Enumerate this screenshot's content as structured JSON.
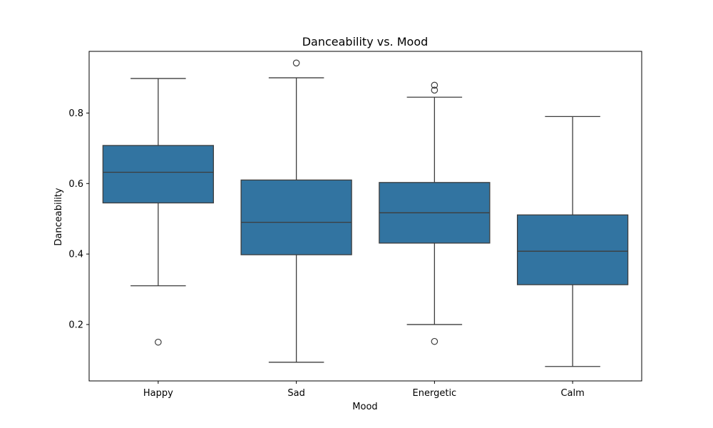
{
  "chart_data": {
    "type": "box",
    "title": "Danceability vs. Mood",
    "xlabel": "Mood",
    "ylabel": "Danceability",
    "ylim": [
      0.04,
      0.975
    ],
    "yticks": [
      0.2,
      0.4,
      0.6,
      0.8
    ],
    "ytick_labels": [
      "0.2",
      "0.4",
      "0.6",
      "0.8"
    ],
    "grid": false,
    "box_color": "#3274a1",
    "line_color": "#3d3d3d",
    "categories": [
      "Happy",
      "Sad",
      "Energetic",
      "Calm"
    ],
    "boxes": [
      {
        "category": "Happy",
        "whisker_low": 0.31,
        "q1": 0.545,
        "median": 0.632,
        "q3": 0.708,
        "whisker_high": 0.898,
        "outliers": [
          0.15
        ]
      },
      {
        "category": "Sad",
        "whisker_low": 0.093,
        "q1": 0.398,
        "median": 0.49,
        "q3": 0.61,
        "whisker_high": 0.9,
        "outliers": [
          0.942
        ]
      },
      {
        "category": "Energetic",
        "whisker_low": 0.2,
        "q1": 0.431,
        "median": 0.517,
        "q3": 0.603,
        "whisker_high": 0.845,
        "outliers": [
          0.152,
          0.865,
          0.879
        ]
      },
      {
        "category": "Calm",
        "whisker_low": 0.081,
        "q1": 0.313,
        "median": 0.408,
        "q3": 0.511,
        "whisker_high": 0.79,
        "outliers": []
      }
    ]
  }
}
